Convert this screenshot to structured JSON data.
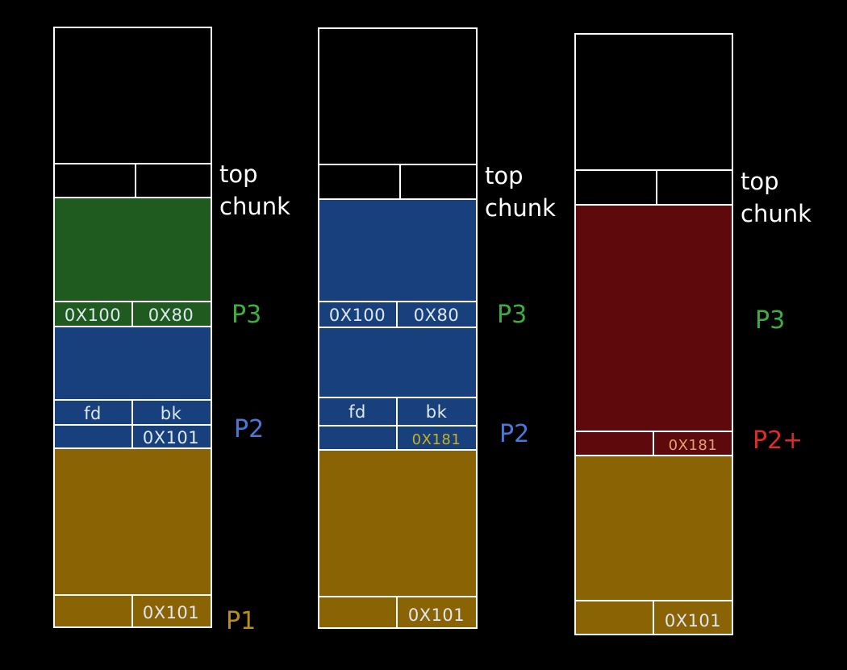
{
  "colors": {
    "outline": "#ffffff",
    "green_fill": "#1f5a1f",
    "blue_fill": "#17407c",
    "yellow_fill": "#8a6404",
    "red_fill": "#5e0a0c",
    "green_text": "#3fae3f",
    "blue_text": "#4a78d8",
    "yellow_text": "#b89018",
    "red_text": "#e02a25",
    "cell_text_light": "#dfe8f2",
    "cell_text_yellow": "#c8b020",
    "cell_text_orange": "#e6a070"
  },
  "columns": [
    {
      "top_chunk_label": [
        "top",
        "chunk"
      ],
      "p3": {
        "label": "P3",
        "prev_size": "0X100",
        "size": "0X80"
      },
      "p2": {
        "label": "P2",
        "fd": "fd",
        "bk": "bk",
        "size": "0X101"
      },
      "p1": {
        "label": "P1",
        "size": "0X101"
      }
    },
    {
      "top_chunk_label": [
        "top",
        "chunk"
      ],
      "p3": {
        "label": "P3",
        "prev_size": "0X100",
        "size": "0X80"
      },
      "p2": {
        "label": "P2",
        "fd": "fd",
        "bk": "bk",
        "size": "0X181"
      },
      "p1": {
        "size": "0X101"
      }
    },
    {
      "top_chunk_label": [
        "top",
        "chunk"
      ],
      "p3": {
        "label": "P3"
      },
      "p2": {
        "label": "P2+",
        "size": "0X181"
      },
      "p1": {
        "size": "0X101"
      }
    }
  ]
}
